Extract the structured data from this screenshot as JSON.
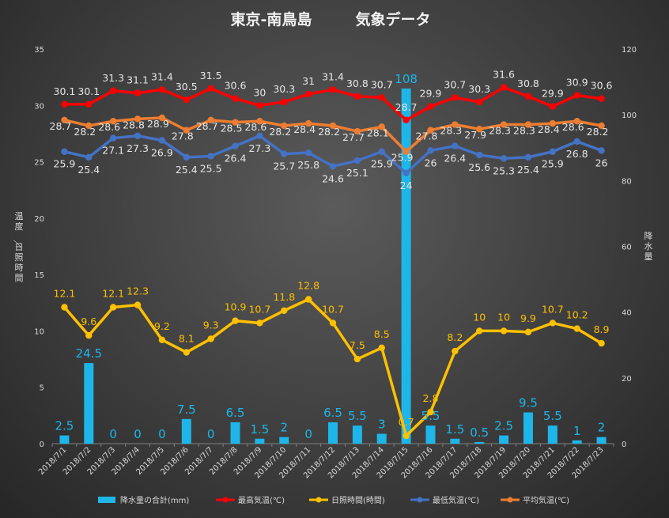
{
  "chart_data": {
    "type": "bar+line",
    "title_parts": [
      "東京-南鳥島",
      "気象データ"
    ],
    "categories": [
      "2018/7/1",
      "2018/7/2",
      "2018/7/3",
      "2018/7/4",
      "2018/7/5",
      "2018/7/6",
      "2018/7/7",
      "2018/7/8",
      "2018/7/9",
      "2018/7/10",
      "2018/7/11",
      "2018/7/12",
      "2018/7/13",
      "2018/7/14",
      "2018/7/15",
      "2018/7/16",
      "2018/7/17",
      "2018/7/18",
      "2018/7/19",
      "2018/7/20",
      "2018/7/21",
      "2018/7/22",
      "2018/7/23"
    ],
    "y_left": {
      "label": "温度／日照時間",
      "min": 0,
      "max": 35,
      "ticks": [
        0,
        5,
        10,
        15,
        20,
        25,
        30,
        35
      ]
    },
    "y_right": {
      "label": "降水量",
      "min": 0,
      "max": 120,
      "ticks": [
        0,
        20,
        40,
        60,
        80,
        100,
        120
      ]
    },
    "series": [
      {
        "name": "降水量の合計(mm)",
        "type": "bar",
        "axis": "right",
        "color": "#1eb6e8",
        "values": [
          2.5,
          24.5,
          0,
          0,
          0,
          7.5,
          0,
          6.5,
          1.5,
          2,
          0,
          6.5,
          5.5,
          3,
          108,
          5.5,
          1.5,
          0.5,
          2.5,
          9.5,
          5.5,
          1,
          2
        ]
      },
      {
        "name": "最高気温(℃)",
        "type": "line",
        "axis": "left",
        "color": "#ff0000",
        "values": [
          30.1,
          30.1,
          31.3,
          31.1,
          31.4,
          30.5,
          31.5,
          30.6,
          30,
          30.3,
          31,
          31.4,
          30.8,
          30.7,
          28.7,
          29.9,
          30.7,
          30.3,
          31.6,
          30.8,
          29.9,
          30.9,
          30.6
        ]
      },
      {
        "name": "日照時間(時間)",
        "type": "line",
        "axis": "left",
        "color": "#ffc000",
        "values": [
          12.1,
          9.6,
          12.1,
          12.3,
          9.2,
          8.1,
          9.3,
          10.9,
          10.7,
          11.8,
          12.8,
          10.7,
          7.5,
          8.5,
          0.7,
          2.8,
          8.2,
          10,
          10,
          9.9,
          10.7,
          10.2,
          8.9
        ]
      },
      {
        "name": "最低気温(℃)",
        "type": "line",
        "axis": "left",
        "color": "#4472c4",
        "values": [
          25.9,
          25.4,
          27.1,
          27.3,
          26.9,
          25.4,
          25.5,
          26.4,
          27.3,
          25.7,
          25.8,
          24.6,
          25.1,
          25.9,
          24,
          26,
          26.4,
          25.6,
          25.3,
          25.4,
          25.9,
          26.8,
          26
        ]
      },
      {
        "name": "平均気温(℃)",
        "type": "line",
        "axis": "left",
        "color": "#ed7d31",
        "values": [
          28.7,
          28.2,
          28.6,
          28.8,
          28.9,
          27.8,
          28.7,
          28.5,
          28.6,
          28.2,
          28.4,
          28.2,
          27.7,
          28.1,
          25.9,
          27.8,
          28.3,
          27.9,
          28.3,
          28.3,
          28.4,
          28.6,
          28.2
        ]
      }
    ],
    "legend_position": "bottom",
    "grid": false
  }
}
